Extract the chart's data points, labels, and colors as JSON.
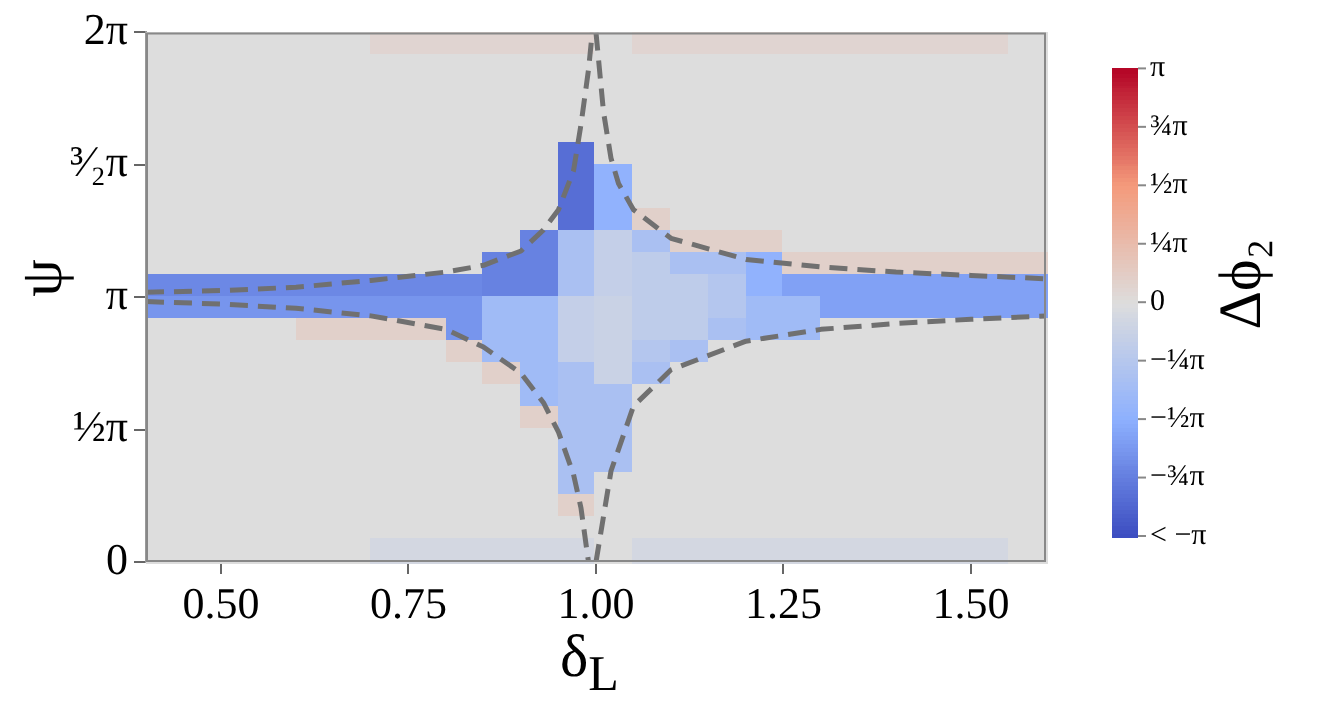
{
  "chart_data": {
    "type": "heatmap",
    "xlabel": "δ$_{L}$",
    "ylabel": "ψ",
    "clabel": "Δϕ₂",
    "xlim": [
      0.4,
      1.6
    ],
    "xticks": [
      {
        "value": 0.5,
        "label": "0.50"
      },
      {
        "value": 0.75,
        "label": "0.75"
      },
      {
        "value": 1.0,
        "label": "1.00"
      },
      {
        "value": 1.25,
        "label": "1.25"
      },
      {
        "value": 1.5,
        "label": "1.50"
      }
    ],
    "ylim": [
      0,
      6.2832
    ],
    "yticks": [
      {
        "value": 0,
        "label": "0"
      },
      {
        "value": 1.5708,
        "label": "½π"
      },
      {
        "value": 3.1416,
        "label": "π"
      },
      {
        "value": 4.7124,
        "label": "³⁄₂π"
      },
      {
        "value": 6.2832,
        "label": "2π"
      }
    ],
    "clim": [
      -3.1416,
      3.1416
    ],
    "cticks": [
      {
        "value": -3.1416,
        "label": "< −π"
      },
      {
        "value": -2.3562,
        "label": "−¾π"
      },
      {
        "value": -1.5708,
        "label": "−½π"
      },
      {
        "value": -0.7854,
        "label": "−¼π"
      },
      {
        "value": 0,
        "label": "0"
      },
      {
        "value": 0.7854,
        "label": "¼π"
      },
      {
        "value": 1.5708,
        "label": "½π"
      },
      {
        "value": 2.3562,
        "label": "¾π"
      },
      {
        "value": 3.1416,
        "label": "π"
      }
    ],
    "cells": [
      [
        0,
        0,
        0,
        0,
        0,
        0,
        0.2,
        0.2,
        0.2,
        0.2,
        0.2,
        0.2,
        0,
        0.2,
        0.2,
        0.2,
        0.2,
        0.2,
        0.2,
        0.2,
        0.2,
        0.2,
        0.2,
        0
      ],
      [
        0,
        0,
        0,
        0,
        0,
        0,
        0,
        0,
        0,
        0,
        0,
        0,
        0,
        0,
        0,
        0,
        0,
        0,
        0,
        0,
        0,
        0,
        0,
        0
      ],
      [
        0,
        0,
        0,
        0,
        0,
        0,
        0,
        0,
        0,
        0,
        0,
        0,
        0,
        0,
        0,
        0,
        0,
        0,
        0,
        0,
        0,
        0,
        0,
        0
      ],
      [
        0,
        0,
        0,
        0,
        0,
        0,
        0,
        0,
        0,
        0,
        0,
        0,
        0,
        0,
        0,
        0,
        0,
        0,
        0,
        0,
        0,
        0,
        0,
        0
      ],
      [
        0,
        0,
        0,
        0,
        0,
        0,
        0,
        0,
        0,
        0,
        0,
        0,
        0,
        0,
        0,
        0,
        0,
        0,
        0,
        0,
        0,
        0,
        0,
        0
      ],
      [
        0,
        0,
        0,
        0,
        0,
        0,
        0,
        0,
        0,
        0,
        0,
        -2.6,
        0,
        0,
        0,
        0,
        0,
        0,
        0,
        0,
        0,
        0,
        0,
        0
      ],
      [
        0,
        0,
        0,
        0,
        0,
        0,
        0,
        0,
        0,
        0,
        0,
        -2.6,
        -1.5,
        0,
        0,
        0,
        0,
        0,
        0,
        0,
        0,
        0,
        0,
        0
      ],
      [
        0,
        0,
        0,
        0,
        0,
        0,
        0,
        0,
        0,
        0,
        0,
        -2.6,
        -1.5,
        0,
        0,
        0,
        0,
        0,
        0,
        0,
        0,
        0,
        0,
        0
      ],
      [
        0,
        0,
        0,
        0,
        0,
        0,
        0,
        0,
        0,
        0,
        0,
        -2.6,
        -1.5,
        0.3,
        0,
        0,
        0,
        0,
        0,
        0,
        0,
        0,
        0,
        0
      ],
      [
        0,
        0,
        0,
        0,
        0,
        0,
        0,
        0,
        0,
        0,
        -2.3,
        -1.0,
        -0.5,
        -1.0,
        0.3,
        0.3,
        0.3,
        0,
        0,
        0,
        0,
        0,
        0,
        0
      ],
      [
        0,
        0,
        0,
        0,
        0,
        0,
        0,
        0,
        0,
        -2.3,
        -2.3,
        -1.0,
        -0.5,
        -0.6,
        -1.0,
        -1.0,
        -1.5,
        0.3,
        0.3,
        0.3,
        0.3,
        0.3,
        0.3,
        0.3
      ],
      [
        -2.2,
        -2.2,
        -2.2,
        -2.2,
        -2.2,
        -2.2,
        -2.2,
        -2.2,
        -2.2,
        -2.3,
        -2.3,
        -1.0,
        -0.5,
        -0.6,
        -0.6,
        -0.8,
        -1.5,
        -1.8,
        -1.8,
        -1.8,
        -1.8,
        -1.8,
        -1.8,
        -1.8
      ],
      [
        -2.0,
        -2.0,
        -2.0,
        -2.0,
        -2.0,
        -2.0,
        -2.0,
        -2.0,
        -2.0,
        -1.2,
        -1.2,
        -0.5,
        -0.4,
        -0.6,
        -0.6,
        -0.8,
        -1.2,
        -1.2,
        -1.8,
        -1.8,
        -1.8,
        -1.8,
        -1.8,
        -1.8
      ],
      [
        0,
        0,
        0,
        0,
        0.3,
        0.3,
        0.3,
        0.3,
        -2.0,
        -1.2,
        -1.2,
        -0.5,
        -0.4,
        -0.6,
        -0.6,
        -1.0,
        -1.2,
        -1.2,
        0,
        0,
        0,
        0,
        0,
        0
      ],
      [
        0,
        0,
        0,
        0,
        0,
        0,
        0,
        0,
        0.3,
        -1.2,
        -1.2,
        -0.5,
        -0.4,
        -0.8,
        -1.0,
        0,
        0,
        0,
        0,
        0,
        0,
        0,
        0,
        0
      ],
      [
        0,
        0,
        0,
        0,
        0,
        0,
        0,
        0,
        0,
        0.3,
        -1.2,
        -1.0,
        -0.4,
        -1.0,
        0,
        0,
        0,
        0,
        0,
        0,
        0,
        0,
        0,
        0
      ],
      [
        0,
        0,
        0,
        0,
        0,
        0,
        0,
        0,
        0,
        0,
        -1.2,
        -1.0,
        -1.0,
        0,
        0,
        0,
        0,
        0,
        0,
        0,
        0,
        0,
        0,
        0
      ],
      [
        0,
        0,
        0,
        0,
        0,
        0,
        0,
        0,
        0,
        0,
        0.3,
        -1.0,
        -1.0,
        0,
        0,
        0,
        0,
        0,
        0,
        0,
        0,
        0,
        0,
        0
      ],
      [
        0,
        0,
        0,
        0,
        0,
        0,
        0,
        0,
        0,
        0,
        0,
        -1.0,
        -1.0,
        0,
        0,
        0,
        0,
        0,
        0,
        0,
        0,
        0,
        0,
        0
      ],
      [
        0,
        0,
        0,
        0,
        0,
        0,
        0,
        0,
        0,
        0,
        0,
        -1.0,
        -1.0,
        0,
        0,
        0,
        0,
        0,
        0,
        0,
        0,
        0,
        0,
        0
      ],
      [
        0,
        0,
        0,
        0,
        0,
        0,
        0,
        0,
        0,
        0,
        0,
        -1.0,
        0,
        0,
        0,
        0,
        0,
        0,
        0,
        0,
        0,
        0,
        0,
        0
      ],
      [
        0,
        0,
        0,
        0,
        0,
        0,
        0,
        0,
        0,
        0,
        0,
        0.3,
        0,
        0,
        0,
        0,
        0,
        0,
        0,
        0,
        0,
        0,
        0,
        0
      ],
      [
        0,
        0,
        0,
        0,
        0,
        0,
        0,
        0,
        0,
        0,
        0,
        0,
        0,
        0,
        0,
        0,
        0,
        0,
        0,
        0,
        0,
        0,
        0,
        0
      ],
      [
        0,
        0,
        0,
        0,
        0,
        0,
        -0.2,
        -0.2,
        -0.2,
        -0.2,
        -0.2,
        -0.2,
        0,
        -0.2,
        -0.2,
        -0.2,
        -0.2,
        -0.2,
        -0.2,
        -0.2,
        -0.2,
        -0.2,
        -0.2,
        0
      ]
    ],
    "line_style": "dashed",
    "series": [
      {
        "type": "line",
        "color": "#707070",
        "x": [
          0.4,
          0.5,
          0.6,
          0.7,
          0.8,
          0.85,
          0.9,
          0.93,
          0.95,
          0.97,
          0.98,
          0.99,
          0.995
        ],
        "values": [
          3.2,
          3.22,
          3.26,
          3.34,
          3.44,
          3.52,
          3.69,
          3.94,
          4.18,
          4.64,
          5.19,
          5.84,
          6.28
        ]
      },
      {
        "type": "line",
        "color": "#707070",
        "x": [
          1.0,
          1.01,
          1.02,
          1.03,
          1.05,
          1.1,
          1.2,
          1.3,
          1.4,
          1.5,
          1.6
        ],
        "values": [
          6.28,
          5.34,
          4.79,
          4.49,
          4.18,
          3.84,
          3.59,
          3.5,
          3.44,
          3.4,
          3.36
        ]
      },
      {
        "type": "line",
        "color": "#707070",
        "x": [
          0.4,
          0.5,
          0.6,
          0.7,
          0.8,
          0.85,
          0.9,
          0.93,
          0.95,
          0.97,
          0.98,
          0.99
        ],
        "values": [
          3.09,
          3.06,
          3.01,
          2.92,
          2.76,
          2.55,
          2.24,
          1.89,
          1.54,
          1.04,
          0.64,
          0
        ]
      },
      {
        "type": "line",
        "color": "#707070",
        "x": [
          1.0,
          1.01,
          1.02,
          1.05,
          1.1,
          1.2,
          1.3,
          1.4,
          1.5,
          1.6
        ],
        "values": [
          0,
          0.54,
          1.08,
          1.85,
          2.28,
          2.62,
          2.76,
          2.83,
          2.88,
          2.92
        ]
      }
    ]
  }
}
